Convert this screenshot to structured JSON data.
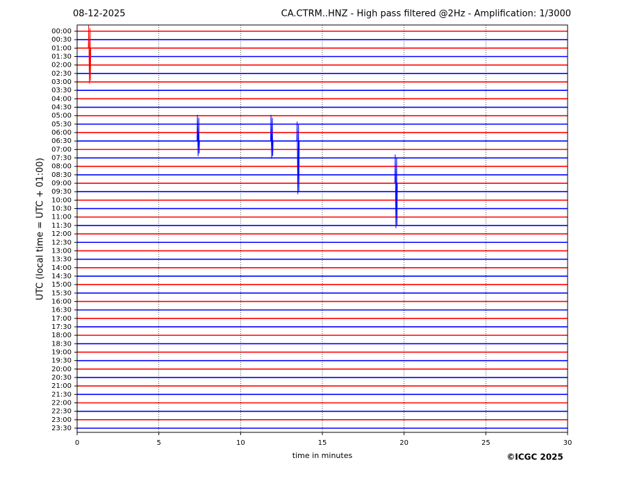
{
  "chart_data": {
    "type": "helicorder",
    "date": "08-12-2025",
    "title": "CA.CTRM..HNZ - High pass filtered @2Hz - Amplification: 1/3000",
    "xlabel": "time in minutes",
    "ylabel": "UTC (local time = UTC + 01:00)",
    "credit": "©ICGC 2025",
    "categories": [
      "00:00",
      "00:30",
      "01:00",
      "01:30",
      "02:00",
      "02:30",
      "03:00",
      "03:30",
      "04:00",
      "04:30",
      "05:00",
      "05:30",
      "06:00",
      "06:30",
      "07:00",
      "07:30",
      "08:00",
      "08:30",
      "09:00",
      "09:30",
      "10:00",
      "10:30",
      "11:00",
      "11:30",
      "12:00",
      "12:30",
      "13:00",
      "13:30",
      "14:00",
      "14:30",
      "15:00",
      "15:30",
      "16:00",
      "16:30",
      "17:00",
      "17:30",
      "18:00",
      "18:30",
      "19:00",
      "19:30",
      "20:00",
      "20:30",
      "21:00",
      "21:30",
      "22:00",
      "22:30",
      "23:00",
      "23:30"
    ],
    "colors": [
      "#ff0000",
      "#0000ff"
    ],
    "xlim": [
      0,
      30
    ],
    "xticks": [
      0,
      5,
      10,
      15,
      20,
      25,
      30
    ],
    "grid": true,
    "events": [
      {
        "row": 2,
        "x": 0.75,
        "up": 2.7,
        "down": 4.2,
        "color": "#ff0000"
      },
      {
        "row": 13,
        "x": 7.4,
        "up": 3.1,
        "down": 1.8,
        "color": "#0000ff"
      },
      {
        "row": 13,
        "x": 11.9,
        "up": 3.1,
        "down": 2.1,
        "color": "#0000ff"
      },
      {
        "row": 13,
        "x": 13.5,
        "up": 2.3,
        "down": 6.3,
        "color": "#0000ff"
      },
      {
        "row": 18,
        "x": 19.5,
        "up": 3.4,
        "down": 5.3,
        "color": "#0000ff"
      }
    ]
  }
}
